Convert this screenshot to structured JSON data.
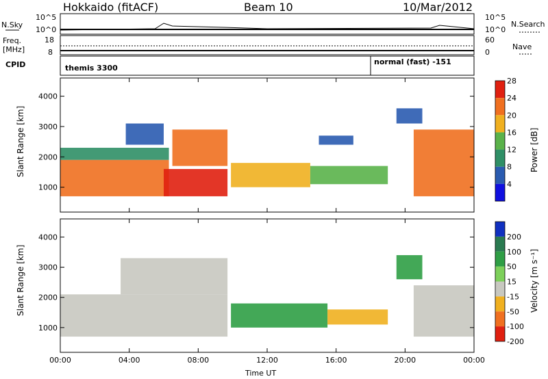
{
  "header": {
    "station": "Hokkaido (fitACF)",
    "beam": "Beam 10",
    "date": "10/Mar/2012"
  },
  "sky_panel": {
    "left_label": "N.Sky",
    "right_label": "N.Search",
    "ticks_left": [
      "10^5",
      "10^0"
    ],
    "ticks_right": [
      "10^5",
      "10^0"
    ]
  },
  "freq_panel": {
    "left_label": "Freq.",
    "left_unit": "[MHz]",
    "right_label": "Nave",
    "ticks_left": [
      "18",
      "8"
    ],
    "ticks_right": [
      "60",
      "0"
    ]
  },
  "cpid_panel": {
    "label": "CPID",
    "programs": [
      {
        "name": "themis 3300",
        "start_hour": 0,
        "end_hour": 18
      },
      {
        "name": "normal (fast) -151",
        "start_hour": 18,
        "end_hour": 24
      }
    ]
  },
  "chart_data": [
    {
      "type": "heatmap",
      "title": "",
      "ylabel": "Slant Range [km]",
      "xlabel": "",
      "x_range_hours": [
        0,
        24
      ],
      "ylim": [
        180,
        4600
      ],
      "yticks": [
        1000,
        2000,
        3000,
        4000
      ],
      "colorbar": {
        "label": "Power [dB]",
        "ticks": [
          4,
          8,
          12,
          16,
          20,
          24,
          28
        ],
        "colors": [
          "#1010e0",
          "#2a5bb0",
          "#2f8f66",
          "#5ab24a",
          "#f0b020",
          "#f07020",
          "#e02010"
        ]
      },
      "regions": [
        {
          "t0": 0.0,
          "t1": 6.3,
          "r0": 700,
          "r1": 1900,
          "level": 24
        },
        {
          "t0": 0.0,
          "t1": 6.3,
          "r0": 1900,
          "r1": 2300,
          "level": 12
        },
        {
          "t0": 3.8,
          "t1": 6.0,
          "r0": 2400,
          "r1": 3100,
          "level": 8
        },
        {
          "t0": 6.0,
          "t1": 9.7,
          "r0": 700,
          "r1": 1600,
          "level": 28
        },
        {
          "t0": 6.5,
          "t1": 9.7,
          "r0": 1700,
          "r1": 2900,
          "level": 24
        },
        {
          "t0": 9.9,
          "t1": 14.5,
          "r0": 1000,
          "r1": 1800,
          "level": 20
        },
        {
          "t0": 14.5,
          "t1": 19.0,
          "r0": 1100,
          "r1": 1700,
          "level": 16
        },
        {
          "t0": 15.0,
          "t1": 17.0,
          "r0": 2400,
          "r1": 2700,
          "level": 8
        },
        {
          "t0": 20.5,
          "t1": 24.0,
          "r0": 700,
          "r1": 2900,
          "level": 24
        },
        {
          "t0": 19.5,
          "t1": 21.0,
          "r0": 3100,
          "r1": 3600,
          "level": 8
        }
      ]
    },
    {
      "type": "heatmap",
      "title": "",
      "ylabel": "Slant Range [km]",
      "xlabel": "Time UT",
      "x_range_hours": [
        0,
        24
      ],
      "xticks": [
        "00:00",
        "04:00",
        "08:00",
        "12:00",
        "16:00",
        "20:00",
        "00:00"
      ],
      "ylim": [
        180,
        4600
      ],
      "yticks": [
        1000,
        2000,
        3000,
        4000
      ],
      "colorbar": {
        "label": "Velocity [m s⁻¹]",
        "ticks": [
          200,
          100,
          50,
          15,
          -15,
          -50,
          -100,
          -200
        ],
        "colors": [
          "#1030c0",
          "#2a7a50",
          "#2f9e45",
          "#7dd05a",
          "#c8c8c0",
          "#f0b020",
          "#f07020",
          "#e02010"
        ]
      },
      "regions": [
        {
          "t0": 0.0,
          "t1": 9.7,
          "r0": 700,
          "r1": 2100,
          "level": 0
        },
        {
          "t0": 3.5,
          "t1": 9.7,
          "r0": 2100,
          "r1": 3300,
          "level": 0
        },
        {
          "t0": 9.9,
          "t1": 15.5,
          "r0": 1000,
          "r1": 1800,
          "level": 30
        },
        {
          "t0": 15.5,
          "t1": 19.0,
          "r0": 1100,
          "r1": 1600,
          "level": -40
        },
        {
          "t0": 20.5,
          "t1": 24.0,
          "r0": 700,
          "r1": 2400,
          "level": 0
        },
        {
          "t0": 19.5,
          "t1": 21.0,
          "r0": 2600,
          "r1": 3400,
          "level": 40
        }
      ]
    }
  ]
}
